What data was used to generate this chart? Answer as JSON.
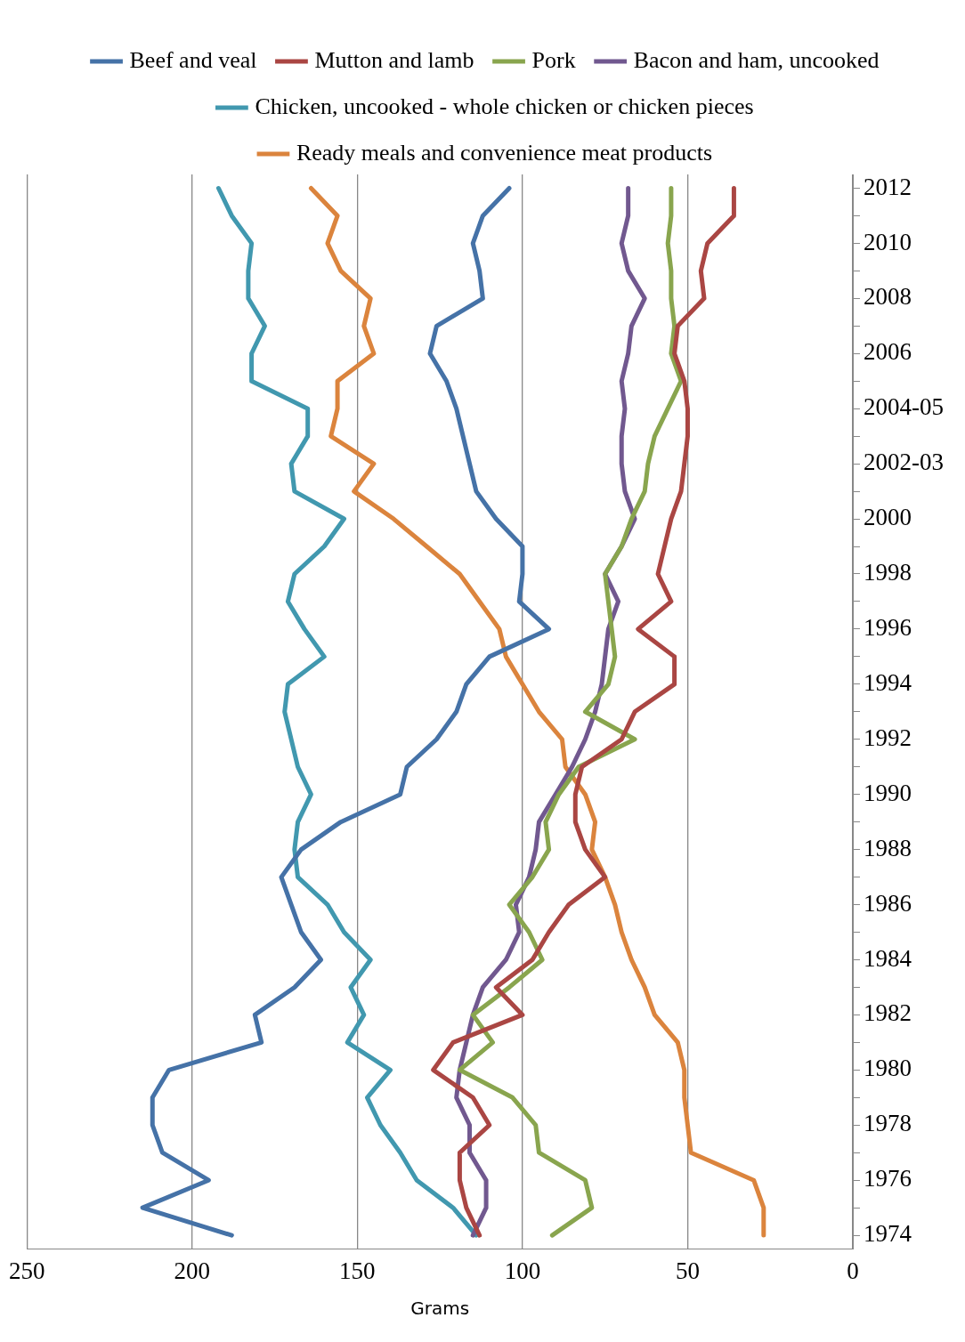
{
  "chart_data": {
    "type": "line",
    "orientation": "horizontal",
    "xlabel": "Grams",
    "categories": [
      "2012",
      null,
      "2010",
      null,
      "2008",
      null,
      "2006",
      null,
      "2004-05",
      null,
      "2002-03",
      null,
      "2000",
      null,
      "1998",
      null,
      "1996",
      null,
      "1994",
      null,
      "1992",
      null,
      "1990",
      null,
      "1988",
      null,
      "1986",
      null,
      "1984",
      null,
      "1982",
      null,
      "1980",
      null,
      "1978",
      null,
      "1976",
      null,
      "1974"
    ],
    "xlim": [
      250,
      0
    ],
    "xticks": [
      250,
      200,
      150,
      100,
      50,
      0
    ],
    "grid": "x",
    "legend": "top",
    "series": [
      {
        "name": "Beef and veal",
        "color": "#4572a7",
        "values": [
          104,
          112,
          115,
          113,
          112,
          126,
          128,
          123,
          120,
          118,
          116,
          114,
          108,
          100,
          100,
          101,
          92,
          110,
          117,
          120,
          126,
          135,
          137,
          155,
          167,
          173,
          170,
          167,
          161,
          169,
          181,
          179,
          207,
          212,
          212,
          209,
          195,
          215,
          188
        ]
      },
      {
        "name": "Mutton and lamb",
        "color": "#aa4643",
        "values": [
          36,
          36,
          44,
          46,
          45,
          53,
          54,
          51,
          50,
          50,
          51,
          52,
          55,
          57,
          59,
          55,
          65,
          54,
          54,
          66,
          70,
          82,
          84,
          84,
          81,
          75,
          86,
          92,
          97,
          108,
          100,
          121,
          127,
          115,
          110,
          119,
          119,
          117,
          113
        ]
      },
      {
        "name": "Pork",
        "color": "#89a54e",
        "values": [
          55,
          55,
          56,
          55,
          55,
          54,
          55,
          52,
          56,
          60,
          62,
          63,
          67,
          70,
          75,
          74,
          73,
          72,
          74,
          81,
          66,
          83,
          89,
          93,
          92,
          97,
          104,
          98,
          94,
          104,
          115,
          109,
          119,
          103,
          96,
          95,
          81,
          79,
          91
        ]
      },
      {
        "name": "Bacon and ham, uncooked",
        "color": "#71588f",
        "values": [
          68,
          68,
          70,
          68,
          63,
          67,
          68,
          70,
          69,
          70,
          70,
          69,
          66,
          70,
          75,
          71,
          74,
          75,
          76,
          78,
          81,
          85,
          90,
          95,
          96,
          98,
          102,
          101,
          105,
          112,
          115,
          117,
          119,
          120,
          116,
          116,
          111,
          111,
          115
        ]
      },
      {
        "name": "Chicken, uncooked - whole chicken or chicken pieces",
        "color": "#4198af",
        "values": [
          192,
          188,
          182,
          183,
          183,
          178,
          182,
          182,
          165,
          165,
          170,
          169,
          154,
          160,
          169,
          171,
          166,
          160,
          171,
          172,
          170,
          168,
          164,
          168,
          169,
          168,
          159,
          154,
          146,
          152,
          148,
          153,
          140,
          147,
          143,
          137,
          132,
          121,
          114
        ]
      },
      {
        "name": "Ready meals and convenience meat products",
        "color": "#db843d",
        "values": [
          164,
          156,
          159,
          155,
          146,
          148,
          145,
          156,
          156,
          158,
          145,
          151,
          139,
          129,
          119,
          113,
          107,
          105,
          100,
          95,
          88,
          87,
          81,
          78,
          79,
          75,
          72,
          70,
          67,
          63,
          60,
          53,
          51,
          51,
          50,
          49,
          30,
          27,
          27
        ]
      }
    ]
  }
}
